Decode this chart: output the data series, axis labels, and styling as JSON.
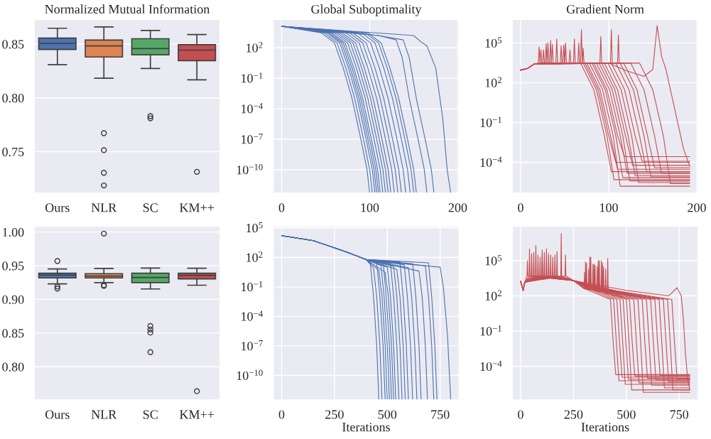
{
  "chart_data": [
    {
      "type": "box",
      "title": "Normalized Mutual Information",
      "categories": [
        "Ours",
        "NLR",
        "SC",
        "KM++"
      ],
      "colors": [
        "#4c72b0",
        "#dd8452",
        "#55a868",
        "#c44e52"
      ],
      "grid": "y",
      "ylim": [
        0.7115,
        0.873
      ],
      "yticks": [
        0.75,
        {
          "value": 0.8,
          "label": "0.80"
        },
        0.85
      ],
      "boxes": [
        {
          "low": 0.8308,
          "q1": 0.845,
          "median": 0.8507,
          "q3": 0.8555,
          "high": 0.8647
        },
        {
          "low": 0.8183,
          "q1": 0.838,
          "median": 0.8483,
          "q3": 0.8537,
          "high": 0.866,
          "outliers": [
            0.7672,
            0.7514,
            0.7304,
            0.7186
          ]
        },
        {
          "low": 0.8273,
          "q1": 0.84,
          "median": 0.8458,
          "q3": 0.855,
          "high": 0.8626,
          "outliers": [
            0.783,
            0.781
          ]
        },
        {
          "low": 0.8168,
          "q1": 0.8346,
          "median": 0.8444,
          "q3": 0.8495,
          "high": 0.8589,
          "outliers": [
            0.7313
          ]
        }
      ]
    },
    {
      "type": "line",
      "title": "Global Suboptimality",
      "color": "#4c72b0",
      "log": "y",
      "grid": true,
      "xlim": [
        -9.6,
        201.6
      ],
      "xticks": [
        0,
        100,
        200
      ],
      "ylim": [
        5e-13,
        63000
      ],
      "yticks": [
        {
          "value": 1e-10,
          "label": "10$^{−10}$"
        },
        {
          "value": 1e-07,
          "label": "10$^{−7}$"
        },
        {
          "value": 0.0001,
          "label": "10$^{−4}$"
        },
        {
          "value": 0.1,
          "label": "10$^{−1}$"
        },
        {
          "value": 100,
          "label": "10$^{2}$"
        }
      ],
      "series": [
        {
          "x": [
            0,
            45,
            60,
            70,
            80,
            90,
            97,
            100
          ],
          "values": [
            13000,
            3000,
            300,
            1,
            0.001,
            1e-07,
            1e-10,
            5e-13
          ]
        },
        {
          "x": [
            0,
            48,
            63,
            73,
            83,
            93,
            100,
            103
          ],
          "values": [
            13000,
            3000,
            300,
            1,
            0.001,
            1e-07,
            1e-10,
            5e-13
          ]
        },
        {
          "x": [
            0,
            51,
            66,
            76,
            86,
            96,
            103,
            106
          ],
          "values": [
            13000,
            3000,
            300,
            1,
            0.001,
            1e-07,
            1e-10,
            5e-13
          ]
        },
        {
          "x": [
            0,
            53,
            68,
            78,
            88,
            98,
            105,
            108
          ],
          "values": [
            13000,
            3000,
            300,
            1,
            0.001,
            1e-07,
            1e-10,
            5e-13
          ]
        },
        {
          "x": [
            0,
            55,
            70,
            80,
            90,
            100,
            107,
            110
          ],
          "values": [
            13000,
            3000,
            300,
            1,
            0.001,
            1e-07,
            1e-10,
            5e-13
          ]
        },
        {
          "x": [
            0,
            57,
            72,
            82,
            92,
            102,
            109,
            112
          ],
          "values": [
            13000,
            3000,
            300,
            1,
            0.001,
            1e-07,
            1e-10,
            5e-13
          ]
        },
        {
          "x": [
            0,
            60,
            75,
            85,
            95,
            105,
            112,
            115
          ],
          "values": [
            13000,
            3000,
            300,
            1,
            0.001,
            1e-07,
            1e-10,
            5e-13
          ]
        },
        {
          "x": [
            0,
            63,
            78,
            88,
            98,
            108,
            115,
            118
          ],
          "values": [
            13000,
            3000,
            300,
            1,
            0.001,
            1e-07,
            1e-10,
            5e-13
          ]
        },
        {
          "x": [
            0,
            66,
            81,
            91,
            101,
            111,
            118,
            121
          ],
          "values": [
            13000,
            3000,
            300,
            1,
            0.001,
            1e-07,
            1e-10,
            5e-13
          ]
        },
        {
          "x": [
            0,
            69,
            84,
            94,
            104,
            114,
            121,
            124
          ],
          "values": [
            13000,
            3000,
            300,
            1,
            0.001,
            1e-07,
            1e-10,
            5e-13
          ]
        },
        {
          "x": [
            0,
            73,
            88,
            98,
            108,
            118,
            125,
            128
          ],
          "values": [
            13000,
            3000,
            300,
            1,
            0.001,
            1e-07,
            1e-10,
            5e-13
          ]
        },
        {
          "x": [
            0,
            77,
            92,
            102,
            112,
            122,
            129,
            132
          ],
          "values": [
            13000,
            3000,
            300,
            1,
            0.001,
            1e-07,
            1e-10,
            5e-13
          ]
        },
        {
          "x": [
            0,
            81,
            96,
            106,
            116,
            126,
            133,
            136
          ],
          "values": [
            13000,
            3000,
            300,
            1,
            0.001,
            1e-07,
            1e-10,
            5e-13
          ]
        },
        {
          "x": [
            0,
            86,
            101,
            111,
            121,
            131,
            138,
            141
          ],
          "values": [
            13000,
            3000,
            300,
            1,
            0.001,
            1e-07,
            1e-10,
            5e-13
          ]
        },
        {
          "x": [
            0,
            91,
            106,
            116,
            126,
            136,
            143,
            146
          ],
          "values": [
            13000,
            3000,
            300,
            1,
            0.001,
            1e-07,
            1e-10,
            5e-13
          ]
        },
        {
          "x": [
            0,
            95,
            110,
            120,
            130,
            140,
            147,
            150
          ],
          "values": [
            13000,
            3000,
            300,
            1,
            0.001,
            1e-07,
            1e-10,
            5e-13
          ]
        },
        {
          "x": [
            0,
            98,
            113,
            123,
            133,
            143,
            150,
            153
          ],
          "values": [
            13000,
            3000,
            300,
            1,
            0.001,
            1e-07,
            1e-10,
            5e-13
          ]
        },
        {
          "x": [
            0,
            110,
            130,
            137,
            145,
            155,
            162,
            165
          ],
          "values": [
            13000,
            1600,
            600,
            10,
            0.001,
            1e-07,
            1e-10,
            5e-13
          ]
        },
        {
          "x": [
            0,
            110,
            138,
            145,
            153,
            163,
            170,
            173
          ],
          "values": [
            13000,
            1600,
            600,
            10,
            0.001,
            1e-07,
            1e-10,
            5e-13
          ]
        },
        {
          "x": [
            0,
            150,
            158,
            165,
            175,
            183,
            188,
            192
          ],
          "values": [
            13000,
            1600,
            400,
            150,
            1,
            1e-05,
            1e-10,
            5e-13
          ]
        }
      ]
    },
    {
      "type": "line",
      "title": "Gradient Norm",
      "color": "#c44e52",
      "log": "y",
      "grid": true,
      "xlim": [
        -9.6,
        201.6
      ],
      "xticks": [
        0,
        100,
        200
      ],
      "ylim": [
        4.8e-07,
        6000000.0
      ],
      "yticks": [
        {
          "value": 0.0001,
          "label": "10$^{−4}$"
        },
        {
          "value": 0.1,
          "label": "10$^{−1}$"
        },
        {
          "value": 100,
          "label": "10$^{2}$"
        },
        {
          "value": 100000,
          "label": "10$^{5}$"
        }
      ],
      "series": [
        {
          "x": [
            0,
            8,
            15,
            20,
            21,
            22,
            68,
            83,
            95,
            103,
            192
          ],
          "values": [
            900,
            1200,
            2500,
            3000,
            50000,
            3000,
            3000,
            30,
            0.01,
            2e-05,
            2e-05
          ]
        },
        {
          "x": [
            0,
            8,
            15,
            25,
            26,
            27,
            71,
            86,
            98,
            106,
            192
          ],
          "values": [
            900,
            1200,
            2500,
            3000,
            30000,
            3000,
            3000,
            30,
            0.01,
            5e-06,
            5e-06
          ]
        },
        {
          "x": [
            0,
            8,
            15,
            30,
            31,
            32,
            73,
            88,
            100,
            108,
            192
          ],
          "values": [
            900,
            1200,
            2500,
            3000,
            100000,
            3000,
            3000,
            30,
            0.01,
            0.0001,
            0.0001
          ]
        },
        {
          "x": [
            0,
            8,
            15,
            35,
            36,
            37,
            75,
            90,
            102,
            110,
            192
          ],
          "values": [
            900,
            1200,
            2500,
            3000,
            80000,
            3000,
            3000,
            30,
            0.01,
            3e-05,
            3e-05
          ]
        },
        {
          "x": [
            0,
            8,
            15,
            40,
            41,
            42,
            78,
            93,
            105,
            113,
            192
          ],
          "values": [
            900,
            1200,
            2500,
            3000,
            200000,
            3000,
            3000,
            30,
            0.01,
            1.6e-06,
            1.6e-06
          ]
        },
        {
          "x": [
            0,
            8,
            15,
            45,
            46,
            47,
            81,
            96,
            108,
            116,
            192
          ],
          "values": [
            900,
            1200,
            2500,
            3000,
            60000,
            3000,
            3000,
            30,
            0.01,
            7e-06,
            7e-06
          ]
        },
        {
          "x": [
            0,
            8,
            15,
            50,
            51,
            52,
            83,
            98,
            110,
            118,
            192
          ],
          "values": [
            900,
            1200,
            2500,
            3000,
            100000,
            3000,
            3000,
            30,
            0.01,
            0.00027,
            0.00027
          ]
        },
        {
          "x": [
            0,
            8,
            15,
            55,
            56,
            57,
            86,
            101,
            113,
            121,
            192
          ],
          "values": [
            900,
            1200,
            2500,
            3000,
            30000,
            3000,
            3000,
            30,
            0.01,
            1.5e-05,
            1.5e-05
          ]
        },
        {
          "x": [
            0,
            8,
            15,
            60,
            61,
            62,
            89,
            104,
            116,
            124,
            192
          ],
          "values": [
            900,
            1200,
            2500,
            3000,
            200000,
            3000,
            3000,
            30,
            0.01,
            4e-06,
            4e-06
          ]
        },
        {
          "x": [
            0,
            8,
            15,
            65,
            66,
            67,
            92,
            107,
            119,
            127,
            192
          ],
          "values": [
            900,
            1200,
            2500,
            3000,
            100000,
            3000,
            3000,
            30,
            0.01,
            6e-05,
            6e-05
          ]
        },
        {
          "x": [
            0,
            8,
            15,
            68,
            69,
            70,
            95,
            110,
            122,
            130,
            192
          ],
          "values": [
            900,
            1200,
            2500,
            3000,
            1000000,
            3000,
            3000,
            30,
            0.01,
            1e-05,
            1e-05
          ]
        },
        {
          "x": [
            0,
            8,
            15,
            90,
            91,
            92,
            99,
            114,
            126,
            134,
            192
          ],
          "values": [
            900,
            1200,
            2500,
            3000,
            300000,
            3000,
            3000,
            30,
            0.01,
            3e-06,
            3e-06
          ]
        },
        {
          "x": [
            0,
            8,
            15,
            70,
            71,
            72,
            103,
            118,
            130,
            138,
            192
          ],
          "values": [
            900,
            1200,
            2500,
            3000,
            40000,
            3000,
            3000,
            30,
            0.01,
            0.00012,
            0.00012
          ]
        },
        {
          "x": [
            0,
            8,
            15,
            102,
            103,
            104,
            108,
            123,
            135,
            143,
            192
          ],
          "values": [
            900,
            1200,
            2500,
            3000,
            1000000,
            3000,
            3000,
            30,
            0.01,
            2e-05,
            2e-05
          ]
        },
        {
          "x": [
            0,
            8,
            15,
            110,
            111,
            112,
            113,
            128,
            140,
            148,
            192
          ],
          "values": [
            900,
            1200,
            2500,
            3000,
            400000,
            3000,
            3000,
            30,
            0.01,
            8e-06,
            8e-06
          ]
        },
        {
          "x": [
            0,
            8,
            15,
            33,
            34,
            35,
            117,
            132,
            144,
            152,
            192
          ],
          "values": [
            900,
            1200,
            2500,
            3000,
            150000,
            3000,
            3000,
            30,
            0.01,
            4e-05,
            4e-05
          ]
        },
        {
          "x": [
            0,
            8,
            15,
            48,
            49,
            50,
            125,
            140,
            152,
            160,
            192
          ],
          "values": [
            900,
            1200,
            2500,
            3000,
            70000,
            3000,
            3000,
            30,
            0.01,
            1.5e-05,
            1.5e-05
          ]
        },
        {
          "x": [
            0,
            8,
            15,
            28,
            29,
            30,
            135,
            150,
            162,
            170,
            192
          ],
          "values": [
            900,
            1200,
            2500,
            3000,
            90000,
            3000,
            3000,
            30,
            0.01,
            2.5e-06,
            2.5e-06
          ]
        },
        {
          "x": [
            0,
            8,
            15,
            22,
            23,
            24,
            100,
            120,
            140,
            150,
            155,
            160,
            165,
            175,
            185,
            192
          ],
          "values": [
            900,
            1200,
            2500,
            3000,
            30000,
            3000,
            3000,
            800,
            300,
            1000,
            2000000,
            10000,
            1000,
            1,
            0.001,
            5e-05
          ]
        }
      ]
    },
    {
      "type": "box",
      "categories": [
        "Ours",
        "NLR",
        "SC",
        "KM++"
      ],
      "colors": [
        "#4c72b0",
        "#dd8452",
        "#55a868",
        "#c44e52"
      ],
      "grid": "y",
      "ylim": [
        0.7507,
        1.0087
      ],
      "yticks": [
        {
          "value": 0.8,
          "label": "0.80"
        },
        0.85,
        {
          "value": 0.9,
          "label": "0.90"
        },
        0.95,
        {
          "value": 1.0,
          "label": "1.00"
        }
      ],
      "boxes": [
        {
          "low": 0.923,
          "q1": 0.9318,
          "median": 0.936,
          "q3": 0.9388,
          "high": 0.9451,
          "outliers": [
            0.9569,
            0.919,
            0.916
          ]
        },
        {
          "low": 0.9249,
          "q1": 0.9318,
          "median": 0.9346,
          "q3": 0.9381,
          "high": 0.9459,
          "outliers": [
            0.9976,
            0.921,
            0.92
          ]
        },
        {
          "low": 0.9155,
          "q1": 0.9249,
          "median": 0.9325,
          "q3": 0.9388,
          "high": 0.9465,
          "outliers": [
            0.8604,
            0.8552,
            0.8507,
            0.8216
          ]
        },
        {
          "low": 0.921,
          "q1": 0.9304,
          "median": 0.9357,
          "q3": 0.9388,
          "high": 0.9462,
          "outliers": [
            0.7637
          ]
        }
      ]
    },
    {
      "type": "line",
      "xlabel": "Iterations",
      "color": "#4c72b0",
      "log": "y",
      "grid": true,
      "xlim": [
        -40,
        840
      ],
      "xticks": [
        0,
        250,
        500,
        750
      ],
      "ylim": [
        3.2e-13,
        150000
      ],
      "yticks": [
        {
          "value": 1e-10,
          "label": "10$^{−10}$"
        },
        {
          "value": 1e-07,
          "label": "10$^{−7}$"
        },
        {
          "value": 0.0001,
          "label": "10$^{−4}$"
        },
        {
          "value": 0.1,
          "label": "10$^{−1}$"
        },
        {
          "value": 100,
          "label": "10$^{2}$"
        },
        {
          "value": 100000,
          "label": "10$^{5}$"
        }
      ],
      "series": [
        {
          "x": [
            0,
            150,
            300,
            400,
            420,
            435,
            450,
            460
          ],
          "values": [
            16000,
            5000,
            400,
            60,
            20,
            0.01,
            1e-07,
            3.2e-13
          ]
        },
        {
          "x": [
            0,
            150,
            300,
            400,
            435,
            450,
            465,
            475
          ],
          "values": [
            16000,
            5000,
            400,
            60,
            8,
            0.01,
            1e-07,
            3.2e-13
          ]
        },
        {
          "x": [
            0,
            150,
            300,
            400,
            450,
            465,
            480,
            490
          ],
          "values": [
            16000,
            5000,
            400,
            60,
            30,
            0.01,
            1e-07,
            3.2e-13
          ]
        },
        {
          "x": [
            0,
            150,
            300,
            400,
            460,
            475,
            490,
            500
          ],
          "values": [
            16000,
            5000,
            400,
            60,
            5,
            0.01,
            1e-07,
            3.2e-13
          ]
        },
        {
          "x": [
            0,
            150,
            300,
            400,
            470,
            485,
            500,
            510
          ],
          "values": [
            16000,
            5000,
            400,
            60,
            15,
            0.01,
            1e-07,
            3.2e-13
          ]
        },
        {
          "x": [
            0,
            150,
            300,
            400,
            480,
            495,
            510,
            520
          ],
          "values": [
            16000,
            5000,
            400,
            60,
            40,
            0.01,
            1e-07,
            3.2e-13
          ]
        },
        {
          "x": [
            0,
            150,
            300,
            400,
            490,
            505,
            520,
            530
          ],
          "values": [
            16000,
            5000,
            400,
            60,
            3,
            0.01,
            1e-07,
            3.2e-13
          ]
        },
        {
          "x": [
            0,
            150,
            300,
            400,
            500,
            515,
            530,
            540
          ],
          "values": [
            16000,
            5000,
            400,
            60,
            10,
            0.01,
            1e-07,
            3.2e-13
          ]
        },
        {
          "x": [
            0,
            150,
            300,
            400,
            515,
            530,
            545,
            555
          ],
          "values": [
            16000,
            5000,
            400,
            60,
            25,
            0.01,
            1e-07,
            3.2e-13
          ]
        },
        {
          "x": [
            0,
            150,
            300,
            400,
            530,
            545,
            560,
            570
          ],
          "values": [
            16000,
            5000,
            400,
            60,
            12,
            0.01,
            1e-07,
            3.2e-13
          ]
        },
        {
          "x": [
            0,
            150,
            300,
            400,
            545,
            560,
            575,
            585
          ],
          "values": [
            16000,
            5000,
            400,
            60,
            6,
            0.01,
            1e-07,
            3.2e-13
          ]
        },
        {
          "x": [
            0,
            150,
            300,
            400,
            560,
            575,
            590,
            600
          ],
          "values": [
            16000,
            5000,
            400,
            60,
            35,
            0.01,
            1e-07,
            3.2e-13
          ]
        },
        {
          "x": [
            0,
            150,
            300,
            400,
            580,
            595,
            610,
            620
          ],
          "values": [
            16000,
            5000,
            400,
            60,
            18,
            0.01,
            1e-07,
            3.2e-13
          ]
        },
        {
          "x": [
            0,
            150,
            300,
            400,
            600,
            615,
            630,
            640
          ],
          "values": [
            16000,
            5000,
            400,
            60,
            9,
            0.01,
            1e-07,
            3.2e-13
          ]
        },
        {
          "x": [
            0,
            150,
            300,
            400,
            620,
            635,
            650,
            660
          ],
          "values": [
            16000,
            5000,
            400,
            60,
            22,
            0.01,
            1e-07,
            3.2e-13
          ]
        },
        {
          "x": [
            0,
            150,
            300,
            400,
            650,
            665,
            680,
            690
          ],
          "values": [
            16000,
            5000,
            400,
            60,
            4,
            0.01,
            1e-07,
            3.2e-13
          ]
        },
        {
          "x": [
            0,
            150,
            300,
            400,
            680,
            695,
            710,
            720
          ],
          "values": [
            16000,
            5000,
            400,
            60,
            14,
            0.01,
            1e-07,
            3.2e-13
          ]
        },
        {
          "x": [
            0,
            150,
            300,
            400,
            695,
            710,
            725,
            735
          ],
          "values": [
            16000,
            5000,
            400,
            60,
            28,
            0.01,
            1e-07,
            3.2e-13
          ]
        },
        {
          "x": [
            0,
            150,
            300,
            400,
            600,
            750,
            765,
            785,
            800
          ],
          "values": [
            16000,
            5000,
            400,
            60,
            20,
            10,
            0.1,
            1e-06,
            3.2e-13
          ]
        }
      ]
    },
    {
      "type": "line",
      "xlabel": "Iterations",
      "color": "#c44e52",
      "log": "y",
      "grid": true,
      "xlim": [
        -40,
        840
      ],
      "xticks": [
        0,
        250,
        500,
        750
      ],
      "ylim": [
        1.4e-07,
        87000000.0
      ],
      "yticks": [
        {
          "value": 0.0001,
          "label": "10$^{−4}$"
        },
        {
          "value": 0.1,
          "label": "10$^{−1}$"
        },
        {
          "value": 100,
          "label": "10$^{2}$"
        },
        {
          "value": 100000,
          "label": "10$^{5}$"
        }
      ],
      "series": [
        {
          "x": [
            0,
            12,
            20,
            30,
            32,
            34,
            250,
            300,
            302,
            304,
            425,
            438,
            450,
            800
          ],
          "values": [
            1700,
            300,
            1500,
            5000,
            100000,
            5000,
            2000,
            400,
            10000,
            400,
            50,
            0.01,
            2e-05,
            2e-05
          ]
        },
        {
          "x": [
            0,
            12,
            20,
            50,
            52,
            54,
            250,
            320,
            322,
            324,
            440,
            453,
            465,
            800
          ],
          "values": [
            1700,
            300,
            1500,
            5000,
            400000,
            5000,
            2000,
            400,
            20000,
            400,
            50,
            0.01,
            6e-06,
            6e-06
          ]
        },
        {
          "x": [
            0,
            12,
            20,
            80,
            82,
            84,
            250,
            340,
            342,
            344,
            455,
            468,
            480,
            800
          ],
          "values": [
            1700,
            300,
            1500,
            5000,
            300000,
            5000,
            2000,
            400,
            50000,
            400,
            50,
            0.01,
            1.2e-05,
            1.2e-05
          ]
        },
        {
          "x": [
            0,
            12,
            20,
            120,
            122,
            124,
            250,
            360,
            362,
            364,
            470,
            483,
            495,
            800
          ],
          "values": [
            1700,
            300,
            1500,
            5000,
            1000000,
            5000,
            2000,
            400,
            30000,
            400,
            50,
            0.01,
            3e-06,
            3e-06
          ]
        },
        {
          "x": [
            0,
            12,
            20,
            150,
            152,
            154,
            250,
            380,
            382,
            384,
            485,
            498,
            510,
            800
          ],
          "values": [
            1700,
            300,
            1500,
            5000,
            200000,
            5000,
            2000,
            400,
            100000,
            400,
            50,
            0.01,
            8e-06,
            8e-06
          ]
        },
        {
          "x": [
            0,
            12,
            20,
            190,
            192,
            194,
            250,
            400,
            402,
            404,
            500,
            513,
            525,
            800
          ],
          "values": [
            1700,
            300,
            1500,
            5000,
            20000000,
            5000,
            2000,
            400,
            20000,
            400,
            50,
            0.01,
            1e-06,
            1e-06
          ]
        },
        {
          "x": [
            0,
            12,
            20,
            60,
            62,
            64,
            250,
            310,
            312,
            314,
            515,
            528,
            540,
            800
          ],
          "values": [
            1700,
            300,
            1500,
            5000,
            500000,
            5000,
            2000,
            400,
            60000,
            400,
            50,
            0.01,
            1.5e-05,
            1.5e-05
          ]
        },
        {
          "x": [
            0,
            12,
            20,
            100,
            102,
            104,
            250,
            330,
            332,
            334,
            535,
            548,
            560,
            800
          ],
          "values": [
            1700,
            300,
            1500,
            5000,
            800000,
            5000,
            2000,
            400,
            200000,
            400,
            50,
            0.01,
            4e-06,
            4e-06
          ]
        },
        {
          "x": [
            0,
            12,
            20,
            140,
            142,
            144,
            250,
            350,
            352,
            354,
            555,
            568,
            580,
            800
          ],
          "values": [
            1700,
            300,
            1500,
            5000,
            300000,
            5000,
            2000,
            400,
            40000,
            400,
            50,
            0.01,
            6.3e-07,
            6.3e-07
          ]
        },
        {
          "x": [
            0,
            12,
            20,
            170,
            172,
            174,
            250,
            370,
            372,
            374,
            575,
            588,
            600,
            800
          ],
          "values": [
            1700,
            300,
            1500,
            5000,
            600000,
            5000,
            2000,
            400,
            100000,
            400,
            50,
            0.01,
            1e-05,
            1e-05
          ]
        },
        {
          "x": [
            0,
            12,
            20,
            40,
            42,
            44,
            250,
            390,
            392,
            394,
            595,
            608,
            620,
            800
          ],
          "values": [
            1700,
            300,
            1500,
            5000,
            1000000,
            5000,
            2000,
            400,
            30000,
            400,
            50,
            0.01,
            2.5e-06,
            2.5e-06
          ]
        },
        {
          "x": [
            0,
            12,
            20,
            90,
            92,
            94,
            250,
            410,
            412,
            414,
            615,
            628,
            640,
            800
          ],
          "values": [
            1700,
            300,
            1500,
            5000,
            200000,
            5000,
            2000,
            400,
            150000,
            400,
            50,
            0.01,
            7e-06,
            7e-06
          ]
        },
        {
          "x": [
            0,
            12,
            20,
            130,
            132,
            134,
            250,
            305,
            307,
            309,
            635,
            648,
            660,
            800
          ],
          "values": [
            1700,
            300,
            1500,
            5000,
            400000,
            5000,
            2000,
            400,
            80000,
            400,
            50,
            0.01,
            1.8e-05,
            1.8e-05
          ]
        },
        {
          "x": [
            0,
            12,
            20,
            210,
            212,
            214,
            250,
            325,
            327,
            329,
            655,
            668,
            680,
            800
          ],
          "values": [
            1700,
            300,
            1500,
            5000,
            300000,
            5000,
            2000,
            400,
            200000,
            400,
            50,
            0.01,
            1.5e-06,
            1.5e-06
          ]
        },
        {
          "x": [
            0,
            12,
            20,
            70,
            72,
            74,
            250,
            345,
            347,
            349,
            675,
            688,
            700,
            800
          ],
          "values": [
            1700,
            300,
            1500,
            5000,
            2000000,
            5000,
            2000,
            400,
            50000,
            400,
            50,
            0.01,
            5e-06,
            5e-06
          ]
        },
        {
          "x": [
            0,
            12,
            20,
            110,
            112,
            114,
            250,
            365,
            367,
            369,
            695,
            708,
            720,
            800
          ],
          "values": [
            1700,
            300,
            1500,
            5000,
            500000,
            5000,
            2000,
            400,
            100000,
            400,
            50,
            0.01,
            1e-06,
            1e-06
          ]
        },
        {
          "x": [
            0,
            12,
            20,
            160,
            162,
            164,
            250,
            385,
            387,
            389,
            715,
            728,
            740,
            800
          ],
          "values": [
            1700,
            300,
            1500,
            5000,
            300000,
            5000,
            2000,
            400,
            60000,
            400,
            50,
            0.01,
            9e-06,
            9e-06
          ]
        },
        {
          "x": [
            0,
            12,
            20,
            100,
            102,
            104,
            250,
            500,
            700,
            740,
            760,
            770,
            780,
            790,
            800
          ],
          "values": [
            1700,
            300,
            1500,
            5000,
            300000,
            5000,
            2000,
            300,
            100,
            500,
            100,
            1,
            0.001,
            1e-05,
            1e-06
          ]
        }
      ]
    }
  ]
}
